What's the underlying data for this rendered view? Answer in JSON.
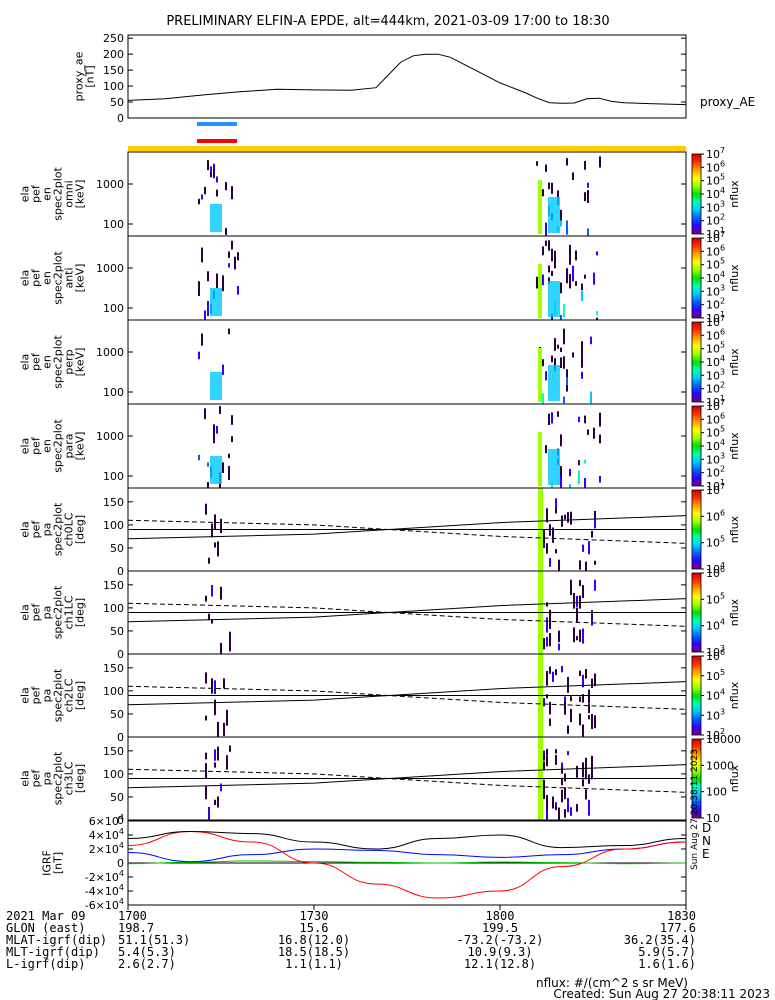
{
  "title": "PRELIMINARY ELFIN-A EPDE, alt=444km, 2021-03-09 17:00 to 18:30",
  "chart_data": [
    {
      "id": "proxy_ae",
      "type": "line",
      "ylabel_lines": [
        "proxy_ae",
        "[nT]"
      ],
      "legend_right": "proxy_AE",
      "yticks": [
        "250",
        "200",
        "150",
        "100",
        "50",
        "0"
      ],
      "ylim": [
        0,
        260
      ],
      "x": [
        0,
        6,
        12,
        18,
        24,
        30,
        36,
        40,
        42,
        44,
        46,
        48,
        50,
        52,
        56,
        60,
        64,
        66,
        68,
        70,
        72,
        74,
        76,
        78,
        80,
        84,
        90
      ],
      "values": [
        55,
        60,
        72,
        82,
        90,
        88,
        87,
        95,
        135,
        175,
        195,
        200,
        200,
        190,
        150,
        110,
        80,
        62,
        48,
        46,
        47,
        60,
        62,
        52,
        48,
        45,
        42
      ],
      "xlim_min": [
        0,
        90
      ]
    },
    {
      "id": "spectrograms",
      "type": "heatmap",
      "panels": [
        {
          "ylabel_lines": [
            "ela",
            "pef",
            "en",
            "spec2plot",
            "omni",
            "[keV]"
          ],
          "yticks": [
            "1000",
            "100"
          ],
          "cbar_ticks": [
            "10^7",
            "10^6",
            "10^5",
            "10^4",
            "10^3",
            "10^2",
            "10^1"
          ],
          "cbar_label": "nflux"
        },
        {
          "ylabel_lines": [
            "ela",
            "pef",
            "en",
            "spec2plot",
            "anti",
            "[keV]"
          ],
          "yticks": [
            "1000",
            "100"
          ],
          "cbar_ticks": [
            "10^7",
            "10^6",
            "10^5",
            "10^4",
            "10^3",
            "10^2",
            "10^1"
          ],
          "cbar_label": "nflux"
        },
        {
          "ylabel_lines": [
            "ela",
            "pef",
            "en",
            "spec2plot",
            "perp",
            "[keV]"
          ],
          "yticks": [
            "1000",
            "100"
          ],
          "cbar_ticks": [
            "10^7",
            "10^6",
            "10^5",
            "10^4",
            "10^3",
            "10^2",
            "10^1"
          ],
          "cbar_label": "nflux"
        },
        {
          "ylabel_lines": [
            "ela",
            "pef",
            "en",
            "spec2plot",
            "para",
            "[keV]"
          ],
          "yticks": [
            "1000",
            "100"
          ],
          "cbar_ticks": [
            "10^7",
            "10^6",
            "10^5",
            "10^4",
            "10^3",
            "10^2",
            "10^1"
          ],
          "cbar_label": "nflux"
        }
      ],
      "colorscale": "rainbow"
    },
    {
      "id": "pitch_angle",
      "type": "heatmap",
      "panels": [
        {
          "ylabel_lines": [
            "ela",
            "pef",
            "pa",
            "spec2plot",
            "ch0LC",
            "[deg]"
          ],
          "yticks": [
            "150",
            "100",
            "50",
            "0"
          ],
          "cbar_ticks": [
            "10^7",
            "10^6",
            "10^5",
            "10^4"
          ],
          "cbar_label": "nflux"
        },
        {
          "ylabel_lines": [
            "ela",
            "pef",
            "pa",
            "spec2plot",
            "ch1LC",
            "[deg]"
          ],
          "yticks": [
            "150",
            "100",
            "50",
            "0"
          ],
          "cbar_ticks": [
            "10^6",
            "10^5",
            "10^4",
            "10^3"
          ],
          "cbar_label": "nflux"
        },
        {
          "ylabel_lines": [
            "ela",
            "pef",
            "pa",
            "spec2plot",
            "ch2LC",
            "[deg]"
          ],
          "yticks": [
            "150",
            "100",
            "50",
            "0"
          ],
          "cbar_ticks": [
            "10^6",
            "10^5",
            "10^4",
            "10^3",
            "10^2"
          ],
          "cbar_label": "nflux"
        },
        {
          "ylabel_lines": [
            "ela",
            "pef",
            "pa",
            "spec2plot",
            "ch3LC",
            "[deg]"
          ],
          "yticks": [
            "150",
            "100",
            "50",
            "0"
          ],
          "cbar_ticks": [
            "10000",
            "1000",
            "100",
            "10"
          ],
          "cbar_label": "nflux"
        }
      ],
      "ylim": [
        0,
        180
      ]
    },
    {
      "id": "igrf",
      "type": "line",
      "ylabel_lines": [
        "IGRF",
        "[nT]"
      ],
      "yticks": [
        "6x10^4",
        "4x10^4",
        "2x10^4",
        "0",
        "-2x10^4",
        "-4x10^4",
        "-6x10^4"
      ],
      "ylim": [
        -60000,
        60000
      ],
      "legend": [
        {
          "label": "E",
          "color": "#00cc00"
        },
        {
          "label": "N",
          "color": "#0000ff"
        },
        {
          "label": "D",
          "color": "#ff0000"
        }
      ],
      "legend_side_text": "Sun Aug 27 20:38:11 2023",
      "series": [
        {
          "name": "N",
          "color": "#0000ff",
          "x": [
            0,
            10,
            20,
            30,
            40,
            50,
            60,
            70,
            80,
            90
          ],
          "values": [
            15000,
            2000,
            12000,
            20000,
            18000,
            12000,
            8000,
            12000,
            20000,
            30000
          ]
        },
        {
          "name": "E",
          "color": "#00cc00",
          "x": [
            0,
            10,
            20,
            30,
            40,
            50,
            60,
            70,
            80,
            90
          ],
          "values": [
            -1000,
            1000,
            3000,
            2000,
            1000,
            0,
            1500,
            500,
            -1000,
            0
          ]
        },
        {
          "name": "D",
          "color": "#ff0000",
          "x": [
            0,
            10,
            20,
            30,
            40,
            50,
            60,
            70,
            80,
            90
          ],
          "values": [
            25000,
            45000,
            30000,
            0,
            -30000,
            -50000,
            -40000,
            -5000,
            20000,
            30000
          ]
        },
        {
          "name": "",
          "color": "#000000",
          "x": [
            0,
            10,
            20,
            30,
            40,
            50,
            60,
            70,
            80,
            90
          ],
          "values": [
            35000,
            45000,
            42000,
            30000,
            20000,
            35000,
            40000,
            22000,
            25000,
            35000
          ]
        }
      ]
    }
  ],
  "footer": {
    "rows": [
      {
        "label": "2021 Mar 09",
        "vals": [
          "1700",
          "1730",
          "1800",
          "1830"
        ]
      },
      {
        "label": "GLON (east)",
        "vals": [
          "198.7",
          "15.6",
          "199.5",
          "177.6"
        ]
      },
      {
        "label": "MLAT-igrf(dip)",
        "vals": [
          "51.1(51.3)",
          "16.8(12.0)",
          "-73.2(-73.2)",
          "36.2(35.4)"
        ]
      },
      {
        "label": "MLT-igrf(dip)",
        "vals": [
          "5.4(5.3)",
          "18.5(18.5)",
          "10.9(9.3)",
          "5.9(5.7)"
        ]
      },
      {
        "label": "L-igrf(dip)",
        "vals": [
          "2.6(2.7)",
          "1.1(1.1)",
          "12.1(12.8)",
          "1.6(1.6)"
        ]
      }
    ],
    "nflux_note": "nflux: #/(cm^2 s sr MeV)",
    "created": "Created: Sun Aug 27 20:38:11 2023"
  }
}
